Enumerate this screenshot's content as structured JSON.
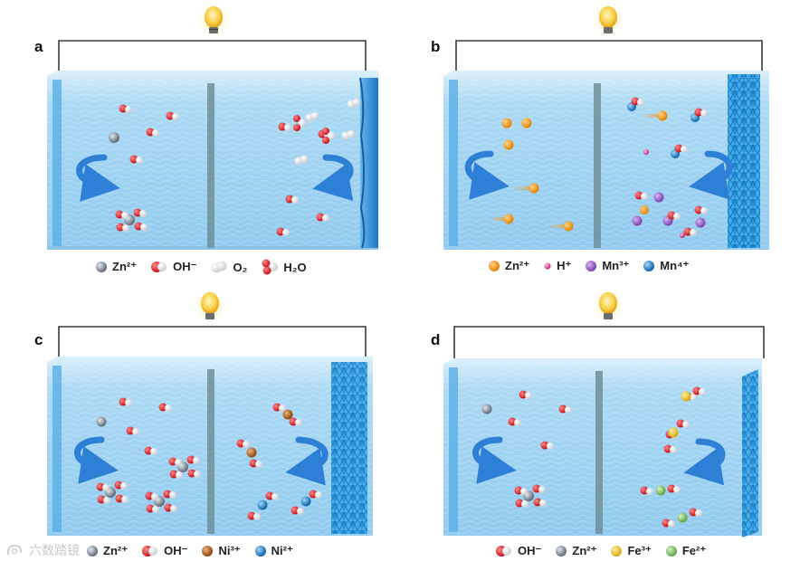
{
  "panels": [
    {
      "label": "a",
      "legend": [
        {
          "icon": "zn-ion",
          "text": "Zn²⁺"
        },
        {
          "icon": "hydroxide",
          "text": "OH⁻"
        },
        {
          "icon": "oxygen-molecule",
          "text": "O₂"
        },
        {
          "icon": "water-molecule",
          "text": "H₂O"
        }
      ]
    },
    {
      "label": "b",
      "legend": [
        {
          "icon": "zn-ion-orange",
          "text": "Zn²⁺"
        },
        {
          "icon": "proton",
          "text": "H⁺"
        },
        {
          "icon": "mn3-ion",
          "text": "Mn³⁺"
        },
        {
          "icon": "mn4-ion",
          "text": "Mn⁴⁺"
        }
      ]
    },
    {
      "label": "c",
      "legend": [
        {
          "icon": "zn-ion",
          "text": "Zn²⁺"
        },
        {
          "icon": "hydroxide",
          "text": "OH⁻"
        },
        {
          "icon": "ni3-ion",
          "text": "Ni³⁺"
        },
        {
          "icon": "ni2-ion",
          "text": "Ni²⁺"
        }
      ]
    },
    {
      "label": "d",
      "legend": [
        {
          "icon": "hydroxide",
          "text": "OH⁻"
        },
        {
          "icon": "zn-ion",
          "text": "Zn²⁺"
        },
        {
          "icon": "fe3-ion",
          "text": "Fe³⁺"
        },
        {
          "icon": "fe2-ion",
          "text": "Fe²⁺"
        }
      ]
    }
  ],
  "watermark": {
    "text": "六数踏镜"
  },
  "colors": {
    "water": "#a9d8f3",
    "water_dark": "#7ec3ea",
    "electrode": "#2f8fd9",
    "separator": "#6f8f98",
    "arrow": "#2e7fd6",
    "oxygen": "#d8141c",
    "hydrogen": "#ffffff",
    "zinc": "#7f8a96",
    "zinc_orange": "#f39a1c",
    "manganese3": "#9a5cc8",
    "manganese4": "#1f86c9",
    "nickel3": "#b8651e",
    "nickel2": "#1f86c9",
    "iron3": "#f2c933",
    "iron2": "#8fcf76",
    "proton": "#e0479a",
    "bulb": "#f6c12c"
  }
}
